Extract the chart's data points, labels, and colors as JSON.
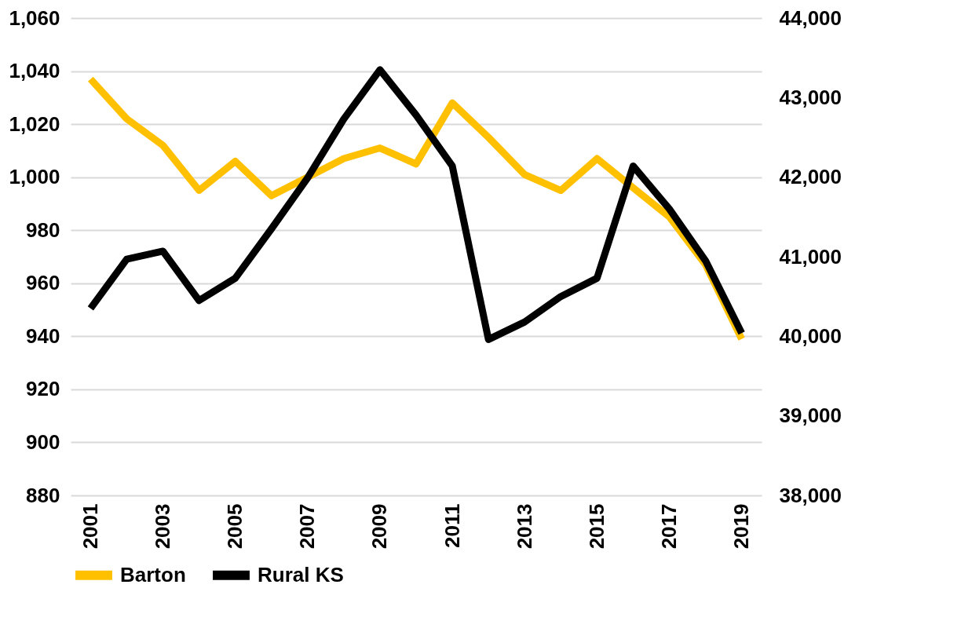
{
  "chart_data": {
    "type": "line",
    "categories": [
      "2001",
      null,
      "2003",
      null,
      "2005",
      null,
      "2007",
      null,
      "2009",
      null,
      "2011",
      null,
      "2013",
      null,
      "2015",
      null,
      "2017",
      null,
      "2019"
    ],
    "series": [
      {
        "name": "Barton",
        "color": "#ffc000",
        "values": [
          1037,
          1022,
          1012,
          995,
          1006,
          993,
          1000,
          1007,
          1011,
          1005,
          1028,
          1015,
          1001,
          995,
          1007,
          996,
          985,
          967,
          939
        ]
      },
      {
        "name": "Rural KS",
        "color": "#000000",
        "axis": "y2",
        "values": [
          40350,
          40970,
          41070,
          40450,
          40730,
          41350,
          41990,
          42730,
          43350,
          42780,
          42140,
          39960,
          40180,
          40500,
          40730,
          42140,
          41600,
          40950,
          40040
        ]
      }
    ],
    "ylim": [
      880,
      1060
    ],
    "yticks": [
      880,
      900,
      920,
      940,
      960,
      980,
      {
        "value": 1000,
        "label": "1,000"
      },
      {
        "value": 1020,
        "label": "1,020"
      },
      {
        "value": 1040,
        "label": "1,040"
      },
      {
        "value": 1060,
        "label": "1,060"
      }
    ],
    "y2lim": [
      38000,
      44000
    ],
    "y2ticks": [
      {
        "value": 38000,
        "label": "38,000"
      },
      {
        "value": 39000,
        "label": "39,000"
      },
      {
        "value": 40000,
        "label": "40,000"
      },
      {
        "value": 41000,
        "label": "41,000"
      },
      {
        "value": 42000,
        "label": "42,000"
      },
      {
        "value": 43000,
        "label": "43,000"
      },
      {
        "value": 44000,
        "label": "44,000"
      }
    ],
    "grid": "y",
    "legend": "bottom"
  }
}
